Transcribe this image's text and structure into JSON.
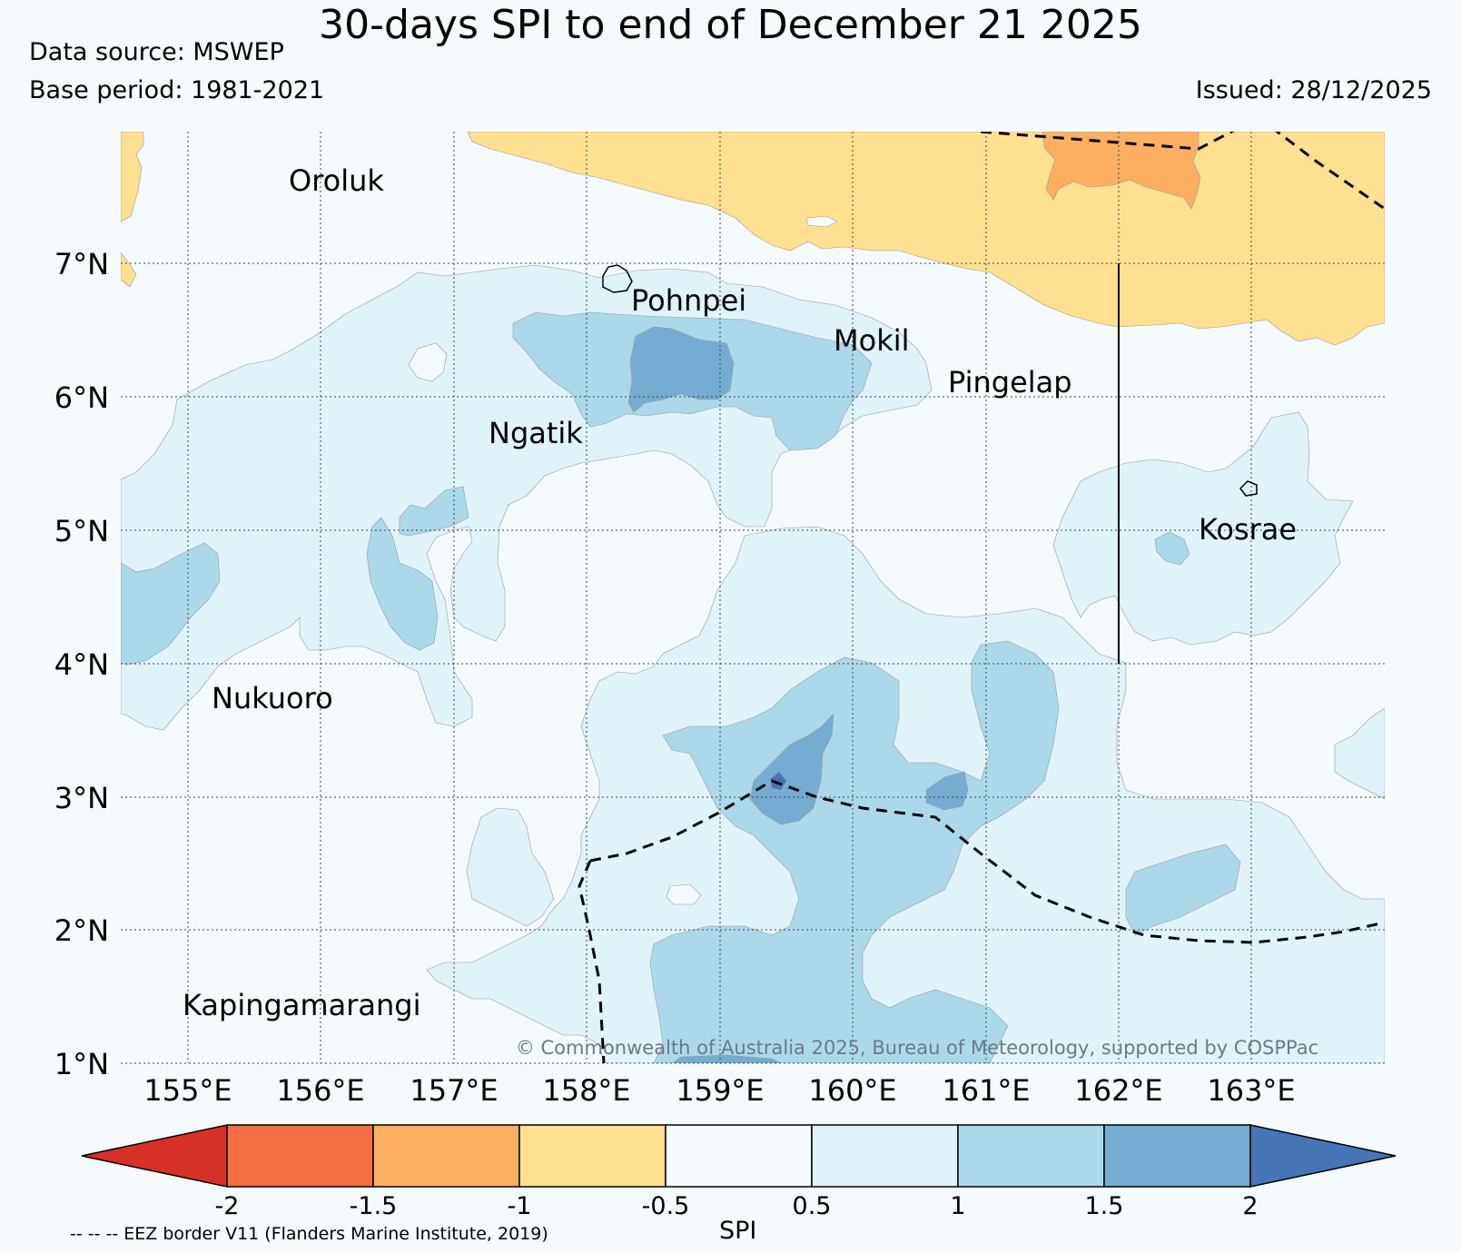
{
  "header": {
    "title": "30-days SPI to end of December 21 2025",
    "data_source": "Data source: MSWEP",
    "base_period": "Base period: 1981-2021",
    "issued": "Issued: 28/12/2025"
  },
  "map": {
    "lat_labels": [
      "7°N",
      "6°N",
      "5°N",
      "4°N",
      "3°N",
      "2°N",
      "1°N"
    ],
    "lon_labels": [
      "155°E",
      "156°E",
      "157°E",
      "158°E",
      "159°E",
      "160°E",
      "161°E",
      "162°E",
      "163°E"
    ],
    "places": [
      {
        "name": "Oroluk"
      },
      {
        "name": "Pohnpei"
      },
      {
        "name": "Mokil"
      },
      {
        "name": "Pingelap"
      },
      {
        "name": "Ngatik"
      },
      {
        "name": "Kosrae"
      },
      {
        "name": "Nukuoro"
      },
      {
        "name": "Kapingamarangi"
      }
    ],
    "copyright": "© Commonwealth of Australia 2025, Bureau of Meteorology, supported by COSPPac"
  },
  "colorbar": {
    "label": "SPI",
    "ticks": [
      "-2",
      "-1.5",
      "-1",
      "-0.5",
      "0.5",
      "1",
      "1.5",
      "2"
    ],
    "colors": [
      "#d73027",
      "#f46d43",
      "#fdae61",
      "#fee090",
      "#f7fbff",
      "#e0f3f8",
      "#abd9e9",
      "#74add1",
      "#4575b4"
    ]
  },
  "footnote": "-- -- -- EEZ border V11 (Flanders Marine Institute, 2019)"
}
